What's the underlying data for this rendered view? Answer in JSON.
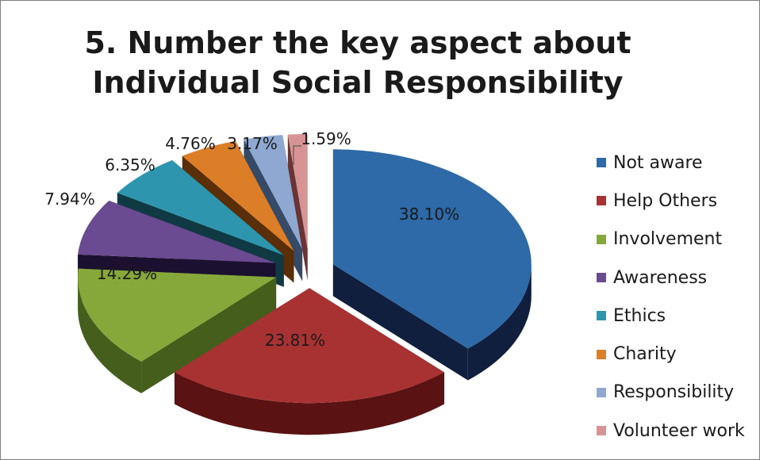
{
  "chart_data": {
    "type": "pie",
    "title_lines": [
      "5. Number the key aspect about",
      "Individual Social Responsibility"
    ],
    "categories": [
      "Not aware",
      "Help Others",
      "Involvement",
      "Awareness",
      "Ethics",
      "Charity",
      "Responsibility",
      "Volunteer work"
    ],
    "values": [
      38.1,
      23.81,
      14.29,
      7.94,
      6.35,
      4.76,
      3.17,
      1.59
    ],
    "data_labels": [
      "38.10%",
      "23.81%",
      "14.29%",
      "7.94%",
      "6.35%",
      "4.76%",
      "3.17%",
      "1.59%"
    ],
    "colors": [
      "#2e69a8",
      "#a83232",
      "#86a83a",
      "#6a4a90",
      "#2d96ae",
      "#dc7d27",
      "#8ea8d2",
      "#d89494"
    ],
    "side_colors": [
      "#0f1f3d",
      "#5a1212",
      "#455e1c",
      "#1c1030",
      "#0f3a44",
      "#5a2e08",
      "#354a66",
      "#6a3434"
    ],
    "legend_position": "right",
    "style": "3d-exploded"
  }
}
